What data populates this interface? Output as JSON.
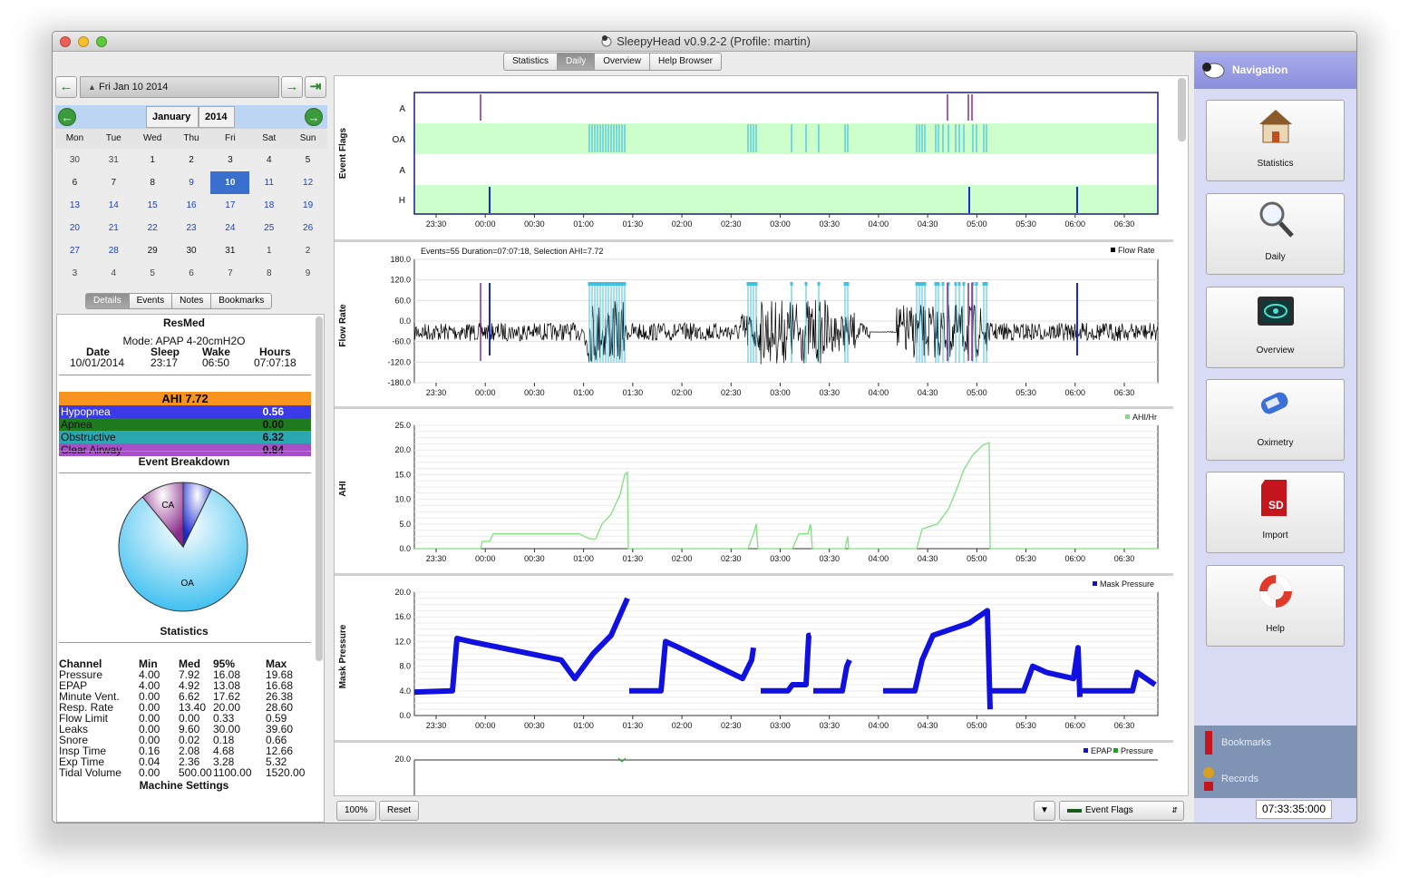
{
  "window": {
    "title": "SleepyHead v0.9.2-2 (Profile: martin)"
  },
  "tabs": [
    "Statistics",
    "Daily",
    "Overview",
    "Help Browser"
  ],
  "active_tab": "Daily",
  "date_bar": {
    "date_label": "Fri Jan 10 2014"
  },
  "calendar": {
    "month": "January",
    "year": "2014",
    "weekdays": [
      "Mon",
      "Tue",
      "Wed",
      "Thu",
      "Fri",
      "Sat",
      "Sun"
    ],
    "weeks": [
      [
        "30",
        "31",
        "1",
        "2",
        "3",
        "4",
        "5"
      ],
      [
        "6",
        "7",
        "8",
        "9",
        "10",
        "11",
        "12"
      ],
      [
        "13",
        "14",
        "15",
        "16",
        "17",
        "18",
        "19"
      ],
      [
        "20",
        "21",
        "22",
        "23",
        "24",
        "25",
        "26"
      ],
      [
        "27",
        "28",
        "29",
        "30",
        "31",
        "1",
        "2"
      ],
      [
        "3",
        "4",
        "5",
        "6",
        "7",
        "8",
        "9"
      ]
    ],
    "selected_day": "10"
  },
  "left_tabs": [
    "Details",
    "Events",
    "Notes",
    "Bookmarks"
  ],
  "details": {
    "machine": "ResMed",
    "mode": "Mode: APAP 4-20cmH2O",
    "headers": [
      "Date",
      "Sleep",
      "Wake",
      "Hours"
    ],
    "values": [
      "10/01/2014",
      "23:17",
      "06:50",
      "07:07:18"
    ],
    "ahi_label": "AHI 7.72",
    "indices": [
      {
        "name": "Hypopnea",
        "value": "0.56",
        "color": "#3a3ae8"
      },
      {
        "name": "Apnea",
        "value": "0.00",
        "color": "#1e7a1e"
      },
      {
        "name": "Obstructive",
        "value": "6.32",
        "color": "#2aa7b0"
      },
      {
        "name": "Clear Airway",
        "value": "0.84",
        "color": "#a64fc6"
      }
    ],
    "breakdown_title": "Event Breakdown",
    "pie": {
      "slices": [
        {
          "label": "OA",
          "value": 6.32
        },
        {
          "label": "CA",
          "value": 0.84
        },
        {
          "label": "H",
          "value": 0.56
        }
      ]
    },
    "statistics_title": "Statistics",
    "stats_headers": [
      "Channel",
      "Min",
      "Med",
      "95%",
      "Max"
    ],
    "stats_rows": [
      [
        "Pressure",
        "4.00",
        "7.92",
        "16.08",
        "19.68"
      ],
      [
        "EPAP",
        "4.00",
        "4.92",
        "13.08",
        "16.68"
      ],
      [
        "Minute Vent.",
        "0.00",
        "6.62",
        "17.62",
        "26.38"
      ],
      [
        "Resp. Rate",
        "0.00",
        "13.40",
        "20.00",
        "28.60"
      ],
      [
        "Flow Limit",
        "0.00",
        "0.00",
        "0.33",
        "0.59"
      ],
      [
        "Leaks",
        "0.00",
        "9.60",
        "30.00",
        "39.60"
      ],
      [
        "Snore",
        "0.00",
        "0.02",
        "0.18",
        "0.66"
      ],
      [
        "Insp Time",
        "0.16",
        "2.08",
        "4.68",
        "12.66"
      ],
      [
        "Exp Time",
        "0.04",
        "2.36",
        "3.28",
        "5.32"
      ],
      [
        "Tidal Volume",
        "0.00",
        "500.00",
        "1100.00",
        "1520.00"
      ]
    ],
    "machine_settings_title": "Machine Settings"
  },
  "time_ticks": [
    "23:30",
    "00:00",
    "00:30",
    "01:00",
    "01:30",
    "02:00",
    "02:30",
    "03:00",
    "03:30",
    "04:00",
    "04:30",
    "05:00",
    "05:30",
    "06:00",
    "06:30"
  ],
  "charts": {
    "event_flags": {
      "ylabel": "Event Flags",
      "rows": [
        "A",
        "OA",
        "A",
        "H"
      ]
    },
    "flow_rate": {
      "ylabel": "Flow Rate",
      "info": "Events=55 Duration=07:07:18, Selection AHI=7.72",
      "legend": "Flow Rate",
      "yticks": [
        "180.0",
        "120.0",
        "60.0",
        "0.0",
        "-60.0",
        "-120.0",
        "-180.0"
      ]
    },
    "ahi": {
      "ylabel": "AHI",
      "legend": "AHI/Hr",
      "yticks": [
        "25.0",
        "20.0",
        "15.0",
        "10.0",
        "5.0",
        "0.0"
      ]
    },
    "mask_pressure": {
      "ylabel": "Mask Pressure",
      "legend": "Mask Pressure",
      "yticks": [
        "20.0",
        "16.0",
        "12.0",
        "8.0",
        "4.0",
        "0.0"
      ]
    },
    "epap": {
      "legend1": "EPAP",
      "legend2": "Pressure",
      "ytop": "20.0"
    }
  },
  "bottom": {
    "zoom": "100%",
    "reset": "Reset",
    "combo": "Event Flags"
  },
  "nav": {
    "title": "Navigation",
    "buttons": [
      "Statistics",
      "Daily",
      "Overview",
      "Oximetry",
      "Import",
      "Help"
    ],
    "bookmarks": "Bookmarks",
    "records": "Records"
  },
  "status_time": "07:33:35:000",
  "colors": {
    "event_band": "#ccffcc",
    "oa": "#40c0e0",
    "ca": "#8a2a8a",
    "h": "#1a2ad0",
    "flow": "#000000",
    "ahi_line": "#80e080",
    "pressure": "#1010e0"
  }
}
